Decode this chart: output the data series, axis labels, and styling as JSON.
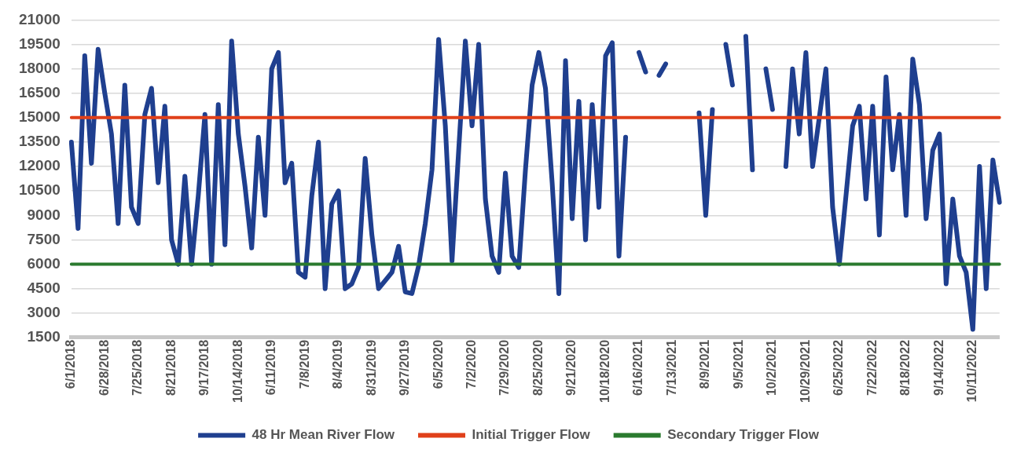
{
  "chart_data": {
    "type": "line",
    "categories": [
      "6/1/2018",
      null,
      null,
      null,
      null,
      "6/28/2018",
      null,
      null,
      null,
      null,
      "7/25/2018",
      null,
      null,
      null,
      null,
      "8/21/2018",
      null,
      null,
      null,
      null,
      "9/17/2018",
      null,
      null,
      null,
      null,
      "10/14/2018",
      null,
      null,
      null,
      null,
      "6/11/2019",
      null,
      null,
      null,
      null,
      "7/8/2019",
      null,
      null,
      null,
      null,
      "8/4/2019",
      null,
      null,
      null,
      null,
      "8/31/2019",
      null,
      null,
      null,
      null,
      "9/27/2019",
      null,
      null,
      null,
      null,
      "6/5/2020",
      null,
      null,
      null,
      null,
      "7/2/2020",
      null,
      null,
      null,
      null,
      "7/29/2020",
      null,
      null,
      null,
      null,
      "8/25/2020",
      null,
      null,
      null,
      null,
      "9/21/2020",
      null,
      null,
      null,
      null,
      "10/18/2020",
      null,
      null,
      null,
      null,
      "6/16/2021",
      null,
      null,
      null,
      null,
      "7/13/2021",
      null,
      null,
      null,
      null,
      "8/9/2021",
      null,
      null,
      null,
      null,
      "9/5/2021",
      null,
      null,
      null,
      null,
      "10/2/2021",
      null,
      null,
      null,
      null,
      "10/29/2021",
      null,
      null,
      null,
      null,
      "6/25/2022",
      null,
      null,
      null,
      null,
      "7/22/2022",
      null,
      null,
      null,
      null,
      "8/18/2022",
      null,
      null,
      null,
      null,
      "9/14/2022",
      null,
      null,
      null,
      null,
      "10/11/2022",
      null,
      null,
      null,
      null
    ],
    "series": [
      {
        "name": "48 Hr Mean River Flow",
        "color": "#1f3f8f",
        "values": [
          13500,
          8200,
          18800,
          12200,
          19200,
          16500,
          14000,
          8500,
          17000,
          9500,
          8500,
          15200,
          16800,
          11000,
          15700,
          7500,
          6000,
          11400,
          6000,
          10200,
          15200,
          6000,
          15800,
          7200,
          19700,
          14000,
          10800,
          7000,
          13800,
          9000,
          18000,
          19000,
          11000,
          12200,
          5500,
          5200,
          10200,
          13500,
          4500,
          9700,
          10500,
          4500,
          4800,
          5800,
          12500,
          7800,
          4500,
          5000,
          5500,
          7100,
          4300,
          4200,
          5900,
          8500,
          11800,
          19800,
          14500,
          6200,
          13000,
          19700,
          14500,
          19500,
          10000,
          6500,
          5500,
          11600,
          6500,
          5800,
          11800,
          17000,
          19000,
          16800,
          11000,
          4200,
          18500,
          8800,
          16000,
          7500,
          15800,
          9500,
          18800,
          19600,
          6500,
          13800,
          null,
          19000,
          17800,
          null,
          17600,
          18300,
          null,
          null,
          null,
          null,
          15300,
          9000,
          15500,
          null,
          19500,
          17000,
          null,
          20000,
          11800,
          null,
          18000,
          15500,
          null,
          12000,
          18000,
          14000,
          19000,
          12000,
          15000,
          18000,
          9500,
          6000,
          10200,
          14500,
          15700,
          10000,
          15700,
          7800,
          17500,
          11800,
          15200,
          9000,
          18600,
          15800,
          8800,
          13000,
          14000,
          4800,
          10000,
          6500,
          5500,
          2000,
          12000,
          4500,
          12400,
          9800
        ]
      },
      {
        "name": "Initial Trigger Flow",
        "color": "#e0401a",
        "values": [
          15000,
          15000,
          15000,
          15000,
          15000,
          15000,
          15000,
          15000,
          15000,
          15000,
          15000,
          15000,
          15000,
          15000,
          15000,
          15000,
          15000,
          15000,
          15000,
          15000,
          15000,
          15000,
          15000,
          15000,
          15000,
          15000,
          15000,
          15000,
          15000,
          15000,
          15000,
          15000,
          15000,
          15000,
          15000,
          15000,
          15000,
          15000,
          15000,
          15000,
          15000,
          15000,
          15000,
          15000,
          15000,
          15000,
          15000,
          15000,
          15000,
          15000,
          15000,
          15000,
          15000,
          15000,
          15000,
          15000,
          15000,
          15000,
          15000,
          15000,
          15000,
          15000,
          15000,
          15000,
          15000,
          15000,
          15000,
          15000,
          15000,
          15000,
          15000,
          15000,
          15000,
          15000,
          15000,
          15000,
          15000,
          15000,
          15000,
          15000,
          15000,
          15000,
          15000,
          15000,
          15000,
          15000,
          15000,
          15000,
          15000,
          15000,
          15000,
          15000,
          15000,
          15000,
          15000,
          15000,
          15000,
          15000,
          15000,
          15000,
          15000,
          15000,
          15000,
          15000,
          15000,
          15000,
          15000,
          15000,
          15000,
          15000,
          15000,
          15000,
          15000,
          15000,
          15000,
          15000,
          15000,
          15000,
          15000,
          15000,
          15000,
          15000,
          15000,
          15000,
          15000,
          15000,
          15000,
          15000,
          15000,
          15000,
          15000,
          15000,
          15000,
          15000,
          15000,
          15000,
          15000,
          15000,
          15000,
          15000
        ]
      },
      {
        "name": "Secondary Trigger Flow",
        "color": "#2a7a2e",
        "values": [
          6000,
          6000,
          6000,
          6000,
          6000,
          6000,
          6000,
          6000,
          6000,
          6000,
          6000,
          6000,
          6000,
          6000,
          6000,
          6000,
          6000,
          6000,
          6000,
          6000,
          6000,
          6000,
          6000,
          6000,
          6000,
          6000,
          6000,
          6000,
          6000,
          6000,
          6000,
          6000,
          6000,
          6000,
          6000,
          6000,
          6000,
          6000,
          6000,
          6000,
          6000,
          6000,
          6000,
          6000,
          6000,
          6000,
          6000,
          6000,
          6000,
          6000,
          6000,
          6000,
          6000,
          6000,
          6000,
          6000,
          6000,
          6000,
          6000,
          6000,
          6000,
          6000,
          6000,
          6000,
          6000,
          6000,
          6000,
          6000,
          6000,
          6000,
          6000,
          6000,
          6000,
          6000,
          6000,
          6000,
          6000,
          6000,
          6000,
          6000,
          6000,
          6000,
          6000,
          6000,
          6000,
          6000,
          6000,
          6000,
          6000,
          6000,
          6000,
          6000,
          6000,
          6000,
          6000,
          6000,
          6000,
          6000,
          6000,
          6000,
          6000,
          6000,
          6000,
          6000,
          6000,
          6000,
          6000,
          6000,
          6000,
          6000,
          6000,
          6000,
          6000,
          6000,
          6000,
          6000,
          6000,
          6000,
          6000,
          6000,
          6000,
          6000,
          6000,
          6000,
          6000,
          6000,
          6000,
          6000,
          6000,
          6000,
          6000,
          6000,
          6000,
          6000,
          6000,
          6000,
          6000,
          6000,
          6000,
          6000
        ]
      }
    ],
    "ylim": [
      1500,
      21000
    ],
    "yticks": [
      1500,
      3000,
      4500,
      6000,
      7500,
      9000,
      10500,
      12000,
      13500,
      15000,
      16500,
      18000,
      19500,
      21000
    ],
    "grid": "y",
    "legend": "bottom",
    "marker": "none"
  }
}
